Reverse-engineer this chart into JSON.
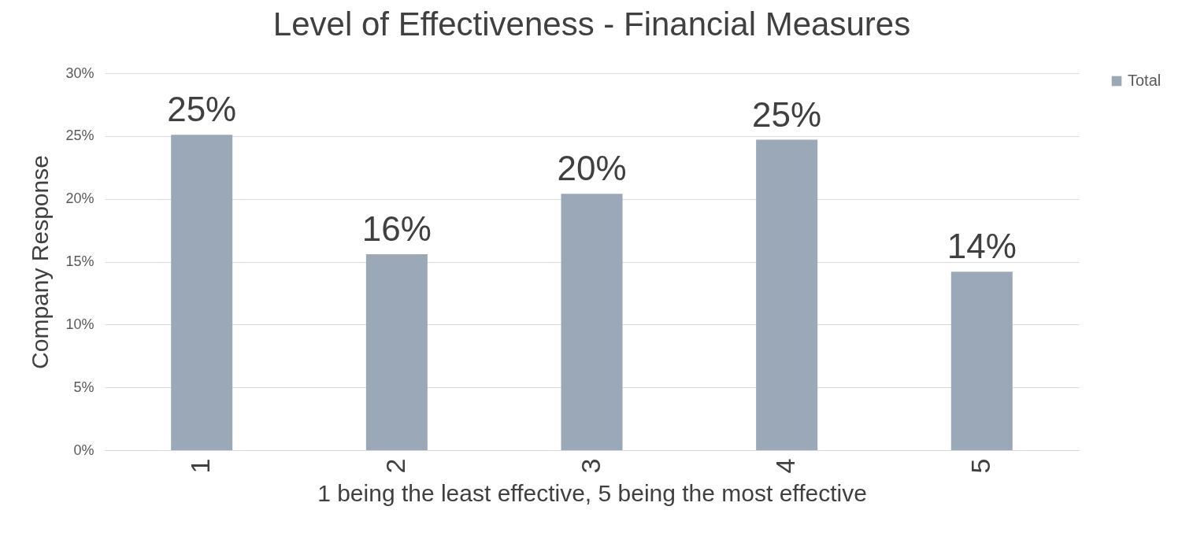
{
  "chart_data": {
    "type": "bar",
    "title": "Level of Effectiveness - Financial Measures",
    "xlabel": "1 being the least effective, 5 being the most effective",
    "ylabel": "Company Response",
    "categories": [
      "1",
      "2",
      "3",
      "4",
      "5"
    ],
    "series": [
      {
        "name": "Total",
        "color": "#9aa8b8",
        "values": [
          25.1,
          15.6,
          20.4,
          24.7,
          14.2
        ],
        "value_labels": [
          "25%",
          "16%",
          "20%",
          "25%",
          "14%"
        ]
      }
    ],
    "ylim": [
      0,
      30
    ],
    "yticks": [
      {
        "value": 0,
        "label": "0%"
      },
      {
        "value": 5,
        "label": "5%"
      },
      {
        "value": 10,
        "label": "10%"
      },
      {
        "value": 15,
        "label": "15%"
      },
      {
        "value": 20,
        "label": "20%"
      },
      {
        "value": 25,
        "label": "25%"
      },
      {
        "value": 30,
        "label": "30%"
      }
    ],
    "grid": "y",
    "legend": "right"
  }
}
